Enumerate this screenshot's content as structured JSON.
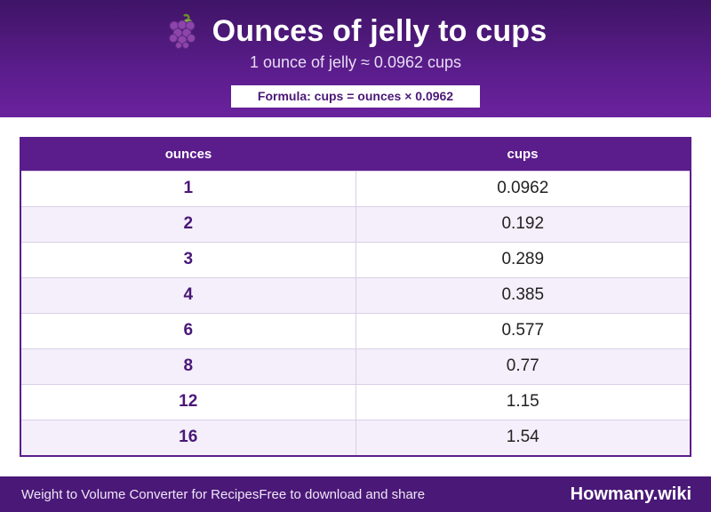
{
  "header": {
    "icon": "grapes-icon",
    "title": "Ounces of jelly to cups",
    "subtitle": "1 ounce of jelly ≈ 0.0962 cups",
    "formula": "Formula: cups = ounces × 0.0962"
  },
  "table": {
    "columns": [
      "ounces",
      "cups"
    ],
    "rows": [
      [
        "1",
        "0.0962"
      ],
      [
        "2",
        "0.192"
      ],
      [
        "3",
        "0.289"
      ],
      [
        "4",
        "0.385"
      ],
      [
        "6",
        "0.577"
      ],
      [
        "8",
        "0.77"
      ],
      [
        "12",
        "1.15"
      ],
      [
        "16",
        "1.54"
      ]
    ]
  },
  "footer": {
    "left": "Weight to Volume Converter for Recipes",
    "middle": "Free to download and share",
    "brand": "Howmany.wiki"
  },
  "colors": {
    "header_bg": "#5b1d8c",
    "accent_text": "#4a1877",
    "footer_bg": "#4a1877",
    "row_alt_bg": "#f4effa"
  }
}
